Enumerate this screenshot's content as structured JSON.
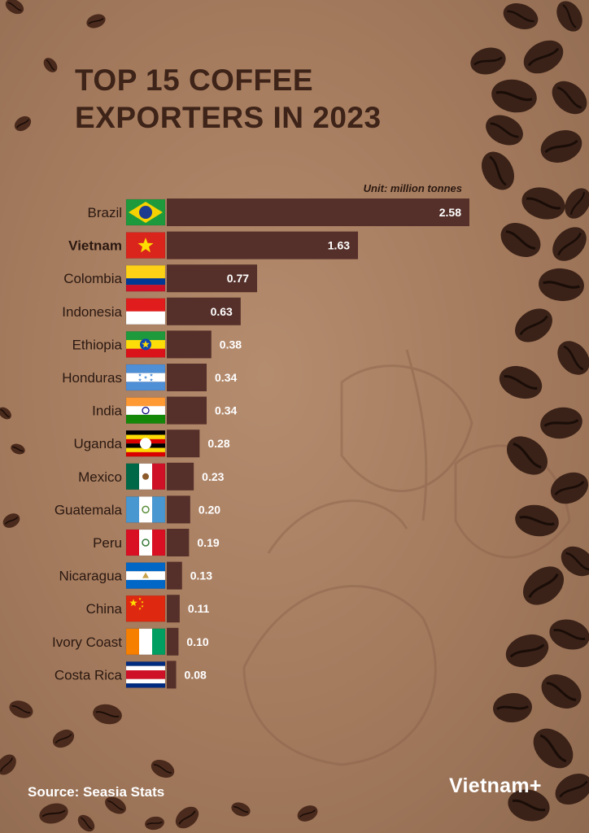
{
  "header": {
    "title_line1": "TOP 15 COFFEE",
    "title_line2": "EXPORTERS IN 2023"
  },
  "footer": {
    "source": "Source: Seasia Stats",
    "brand": "Vietnam+"
  },
  "colors": {
    "bar": "#55302a",
    "title": "#3d2318",
    "text": "#2a1810"
  },
  "chart_data": {
    "type": "bar",
    "orientation": "horizontal",
    "unit_label": "Unit: million tonnes",
    "categories": [
      "Brazil",
      "Vietnam",
      "Colombia",
      "Indonesia",
      "Ethiopia",
      "Honduras",
      "India",
      "Uganda",
      "Mexico",
      "Guatemala",
      "Peru",
      "Nicaragua",
      "China",
      "Ivory Coast",
      "Costa Rica"
    ],
    "values": [
      2.58,
      1.63,
      0.77,
      0.63,
      0.38,
      0.34,
      0.34,
      0.28,
      0.23,
      0.2,
      0.19,
      0.13,
      0.11,
      0.1,
      0.08
    ],
    "value_labels": [
      "2.58",
      "1.63",
      "0.77",
      "0.63",
      "0.38",
      "0.34",
      "0.34",
      "0.28",
      "0.23",
      "0.20",
      "0.19",
      "0.13",
      "0.11",
      "0.10",
      "0.08"
    ],
    "highlight": "Vietnam",
    "flags": [
      "brazil-flag",
      "vietnam-flag",
      "colombia-flag",
      "indonesia-flag",
      "ethiopia-flag",
      "honduras-flag",
      "india-flag",
      "uganda-flag",
      "mexico-flag",
      "guatemala-flag",
      "peru-flag",
      "nicaragua-flag",
      "china-flag",
      "ivory-coast-flag",
      "costa-rica-flag"
    ],
    "xlim": [
      0,
      2.58
    ],
    "grid": false,
    "legend": "none"
  }
}
